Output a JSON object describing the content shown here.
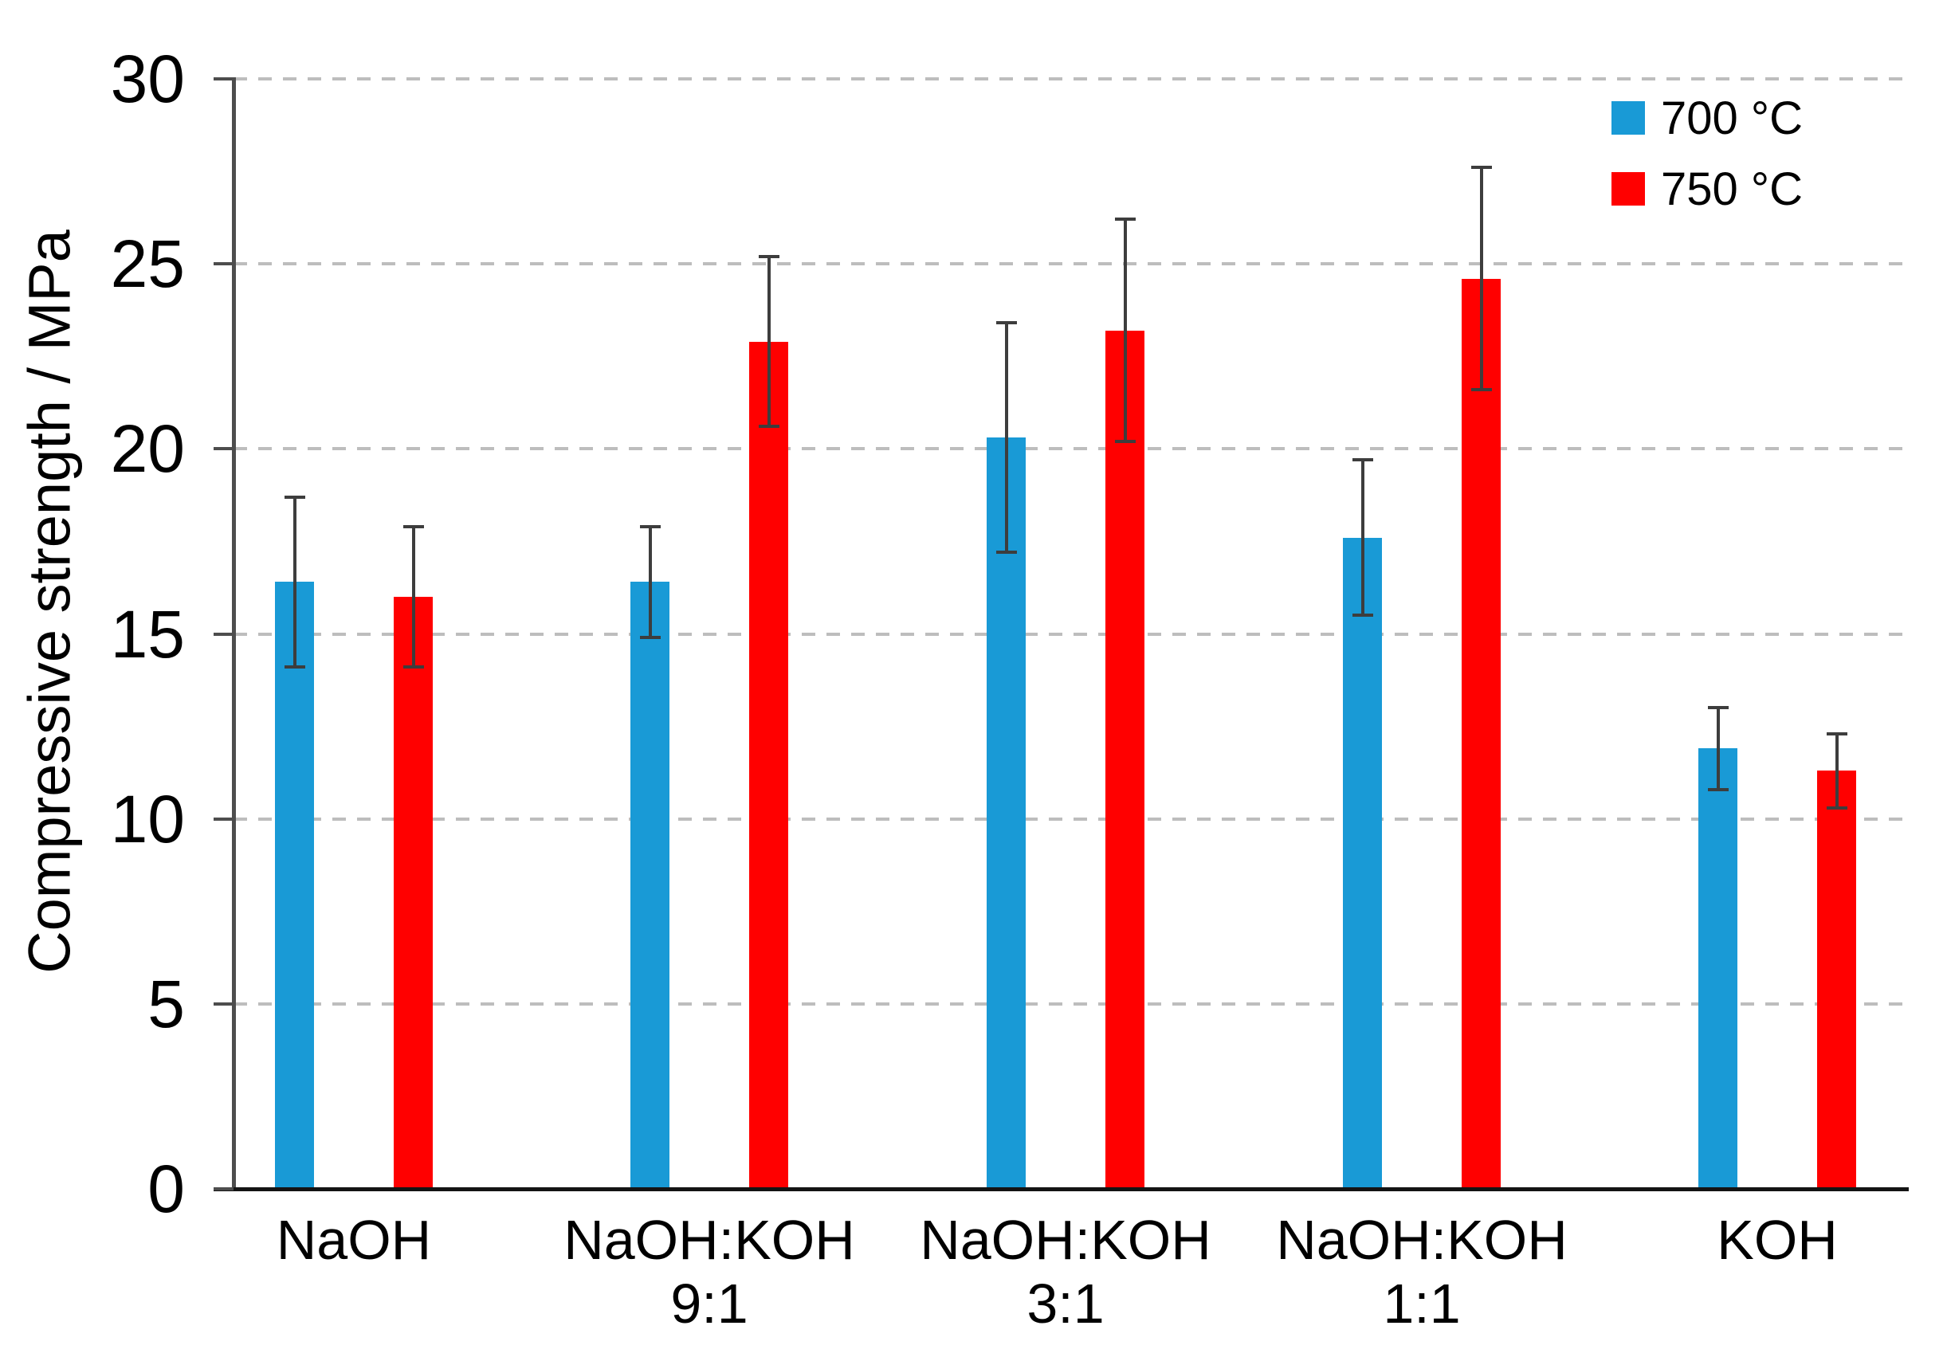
{
  "chart_data": {
    "type": "bar",
    "title": "",
    "ylabel": "Compressive strength / MPa",
    "xlabel": "",
    "ylim": [
      0,
      30
    ],
    "yticks": [
      0,
      5,
      10,
      15,
      20,
      25,
      30
    ],
    "grid": "horizontal-dashed",
    "legend_position": "top-right",
    "categories": [
      {
        "label": "NaOH",
        "sublabel": ""
      },
      {
        "label": "NaOH:KOH",
        "sublabel": "9:1"
      },
      {
        "label": "NaOH:KOH",
        "sublabel": "3:1"
      },
      {
        "label": "NaOH:KOH",
        "sublabel": "1:1"
      },
      {
        "label": "KOH",
        "sublabel": ""
      }
    ],
    "series": [
      {
        "name": "700 °C",
        "color": "#199ad6",
        "values": [
          16.4,
          16.4,
          20.3,
          17.6,
          11.9
        ],
        "errors": [
          2.3,
          1.5,
          3.1,
          2.1,
          1.1
        ]
      },
      {
        "name": "750 °C",
        "color": "#ff0000",
        "values": [
          16.0,
          22.9,
          23.2,
          24.6,
          11.3
        ],
        "errors": [
          1.9,
          2.3,
          3.0,
          3.0,
          1.0
        ]
      }
    ],
    "error_bar_color": "#3d3d3d"
  }
}
